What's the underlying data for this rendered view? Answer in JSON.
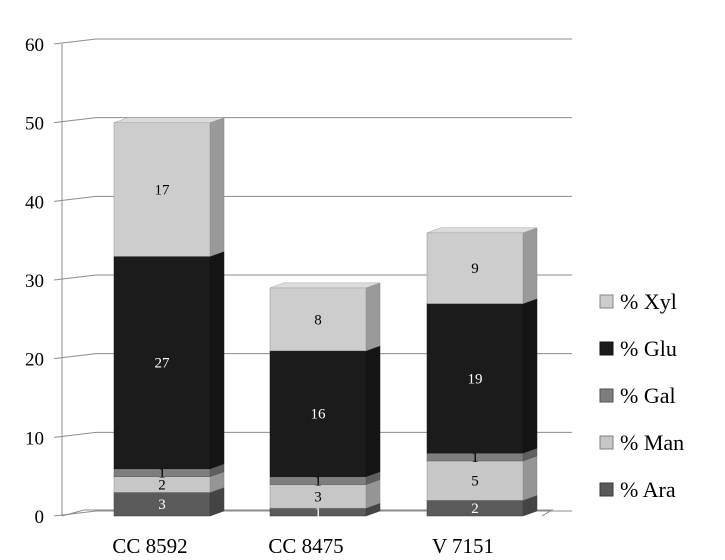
{
  "chart_data": {
    "type": "bar",
    "stacked": true,
    "style": "3d-columns",
    "title": "",
    "xlabel": "",
    "ylabel": "",
    "ylim": [
      0,
      60
    ],
    "yticks": [
      "0",
      "10",
      "20",
      "30",
      "40",
      "50",
      "60"
    ],
    "grid": true,
    "legend_position": "right",
    "categories": [
      "CC 8592",
      "CC 8475",
      "V 7151"
    ],
    "series": [
      {
        "name": "% Ara",
        "values": [
          3,
          1,
          2
        ],
        "color": "#5a5a5a",
        "label_color": "#ffffff"
      },
      {
        "name": "% Man",
        "values": [
          2,
          3,
          5
        ],
        "color": "#c7c7c7",
        "label_color": "#000000"
      },
      {
        "name": "% Gal",
        "values": [
          1,
          1,
          1
        ],
        "color": "#7e7e7e",
        "label_color": "#000000"
      },
      {
        "name": "% Glu",
        "values": [
          27,
          16,
          19
        ],
        "color": "#1b1b1b",
        "label_color": "#ffffff"
      },
      {
        "name": "% Xyl",
        "values": [
          17,
          8,
          9
        ],
        "color": "#cdcdcd",
        "label_color": "#000000"
      }
    ],
    "legend_order": [
      "% Xyl",
      "% Glu",
      "% Gal",
      "% Man",
      "% Ara"
    ]
  }
}
